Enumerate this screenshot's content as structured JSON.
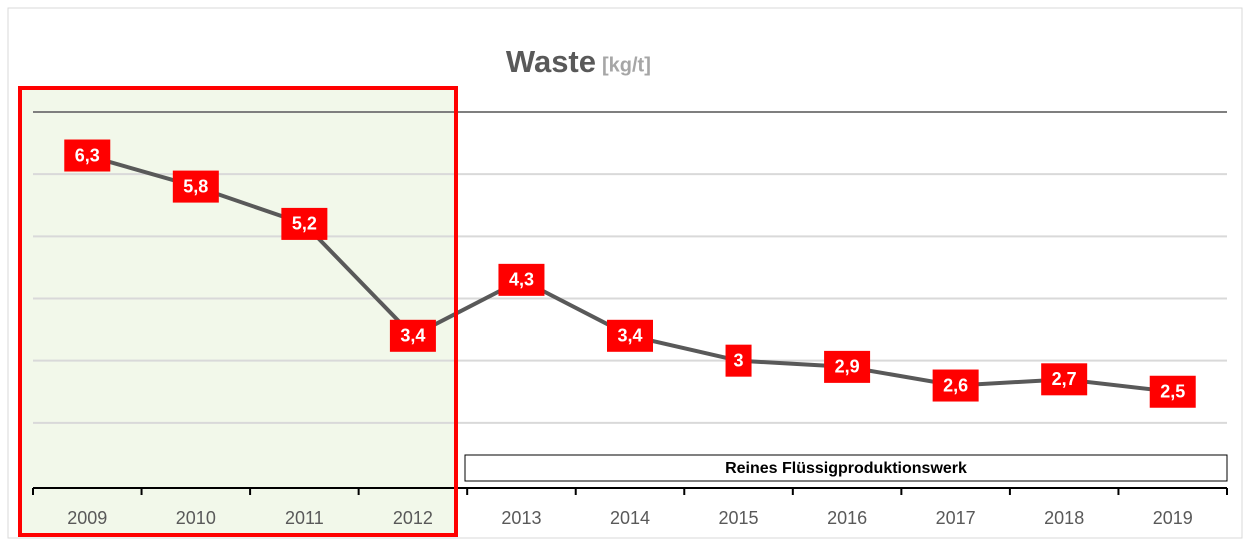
{
  "chart_data": {
    "type": "line",
    "title": "Waste",
    "unit": "[kg/t]",
    "categories": [
      "2009",
      "2010",
      "2011",
      "2012",
      "2013",
      "2014",
      "2015",
      "2016",
      "2017",
      "2018",
      "2019"
    ],
    "values": [
      6.3,
      5.8,
      5.2,
      3.4,
      4.3,
      3.4,
      3,
      2.9,
      2.6,
      2.7,
      2.5
    ],
    "value_labels": [
      "6,3",
      "5,8",
      "5,2",
      "3,4",
      "4,3",
      "3,4",
      "3",
      "2,9",
      "2,6",
      "2,7",
      "2,5"
    ],
    "color": "#595959",
    "label_color": "#ff0000",
    "ylim": [
      1,
      7
    ],
    "yticks": [
      1,
      2,
      3,
      4,
      5,
      6,
      7
    ],
    "grid": true,
    "annotations": [
      "Reines Flüssigproduktionswerk"
    ]
  }
}
